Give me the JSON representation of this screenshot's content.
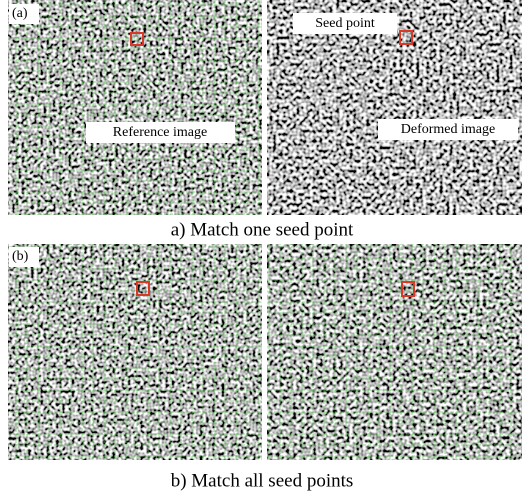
{
  "panel_a": {
    "label": "(a)",
    "seed_label": "Seed point",
    "reference_label": "Reference image",
    "deformed_label": "Deformed image",
    "caption": "a) Match one seed point"
  },
  "panel_b": {
    "label": "(b)",
    "caption": "b) Match all seed points"
  }
}
